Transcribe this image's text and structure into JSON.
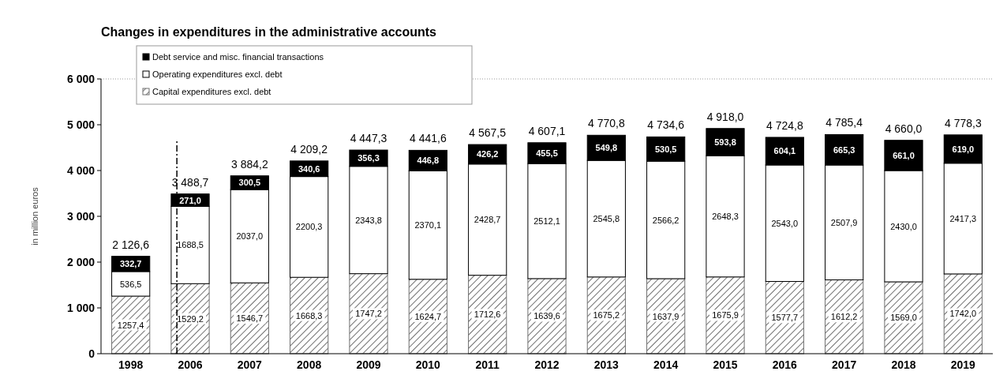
{
  "chart_data": {
    "type": "bar",
    "stacked": true,
    "title": "Changes in expenditures in the administrative accounts",
    "ylabel": "in million euros",
    "categories": [
      "1998",
      "2006",
      "2007",
      "2008",
      "2009",
      "2010",
      "2011",
      "2012",
      "2013",
      "2014",
      "2015",
      "2016",
      "2017",
      "2018",
      "2019"
    ],
    "series": [
      {
        "name": "Capital expenditures excl. debt",
        "color": "#707070",
        "values": [
          1257.4,
          1529.2,
          1546.7,
          1668.3,
          1747.2,
          1624.7,
          1712.6,
          1639.6,
          1675.2,
          1637.9,
          1675.9,
          1577.7,
          1612.2,
          1569.0,
          1742.0
        ],
        "value_labels": [
          "1257,4",
          "1529,2",
          "1546,7",
          "1668,3",
          "1747,2",
          "1624,7",
          "1712,6",
          "1639,6",
          "1675,2",
          "1637,9",
          "1675,9",
          "1577,7",
          "1612,2",
          "1569,0",
          "1742,0"
        ]
      },
      {
        "name": "Operating expenditures excl. debt",
        "color": "#ffffff",
        "values": [
          536.5,
          1688.5,
          2037.0,
          2200.3,
          2343.8,
          2370.1,
          2428.7,
          2512.1,
          2545.8,
          2566.2,
          2648.3,
          2543.0,
          2507.9,
          2430.0,
          2417.3
        ],
        "value_labels": [
          "536,5",
          "1688,5",
          "2037,0",
          "2200,3",
          "2343,8",
          "2370,1",
          "2428,7",
          "2512,1",
          "2545,8",
          "2566,2",
          "2648,3",
          "2543,0",
          "2507,9",
          "2430,0",
          "2417,3"
        ]
      },
      {
        "name": "Debt service and misc. financial transactions",
        "color": "#000000",
        "values": [
          332.7,
          271.0,
          300.5,
          340.6,
          356.3,
          446.8,
          426.2,
          455.5,
          549.8,
          530.5,
          593.8,
          604.1,
          665.3,
          661.0,
          619.0
        ],
        "value_labels": [
          "332,7",
          "271,0",
          "300,5",
          "340,6",
          "356,3",
          "446,8",
          "426,2",
          "455,5",
          "549,8",
          "530,5",
          "593,8",
          "604,1",
          "665,3",
          "661,0",
          "619,0"
        ]
      }
    ],
    "totals": [
      "2 126,6",
      "3 488,7",
      "3 884,2",
      "4 209,2",
      "4 447,3",
      "4 441,6",
      "4 567,5",
      "4 607,1",
      "4 770,8",
      "4 734,6",
      "4 918,0",
      "4 724,8",
      "4 785,4",
      "4 660,0",
      "4 778,3"
    ],
    "ylim": [
      0,
      6000
    ],
    "yticks": [
      {
        "value": 0,
        "label": "0"
      },
      {
        "value": 1000,
        "label": "1 000"
      },
      {
        "value": 2000,
        "label": "2 000"
      },
      {
        "value": 3000,
        "label": "3 000"
      },
      {
        "value": 4000,
        "label": "4 000"
      },
      {
        "value": 5000,
        "label": "5 000"
      },
      {
        "value": 6000,
        "label": "6 000"
      }
    ],
    "ref_lines": [
      {
        "axis": "x",
        "value": "2006",
        "line_style": "dashed",
        "color": "#000000"
      }
    ],
    "legend": "top left"
  }
}
